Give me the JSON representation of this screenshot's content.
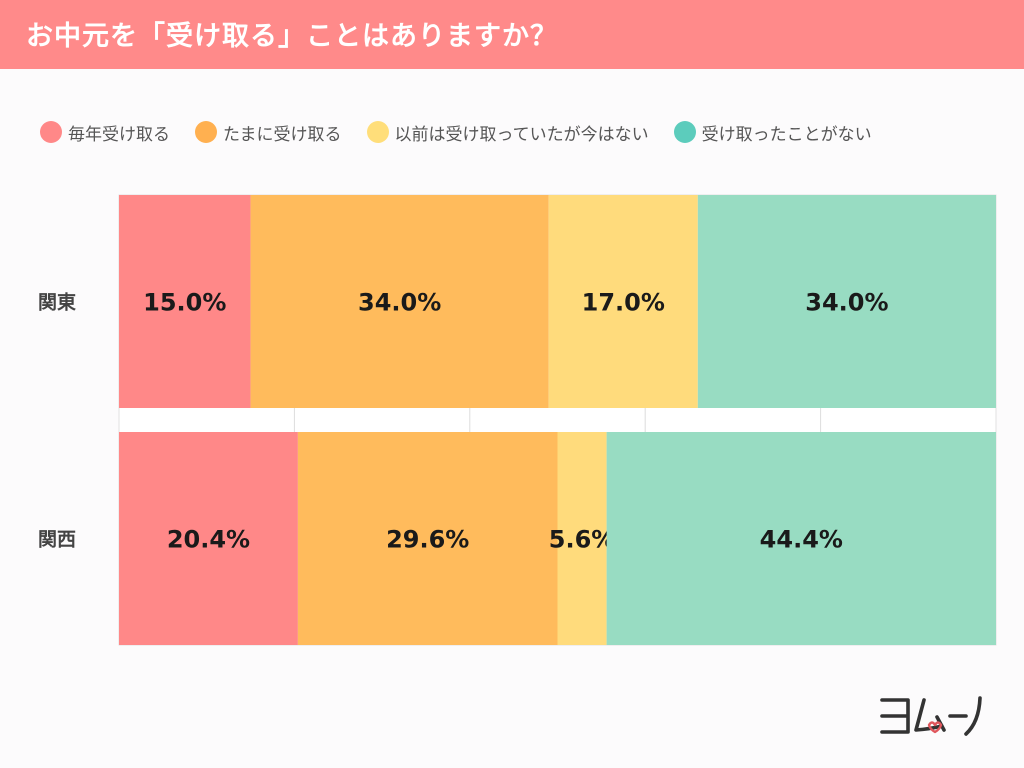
{
  "header": {
    "title": "お中元を「受け取る」ことはありますか？"
  },
  "colors": {
    "header_bg": "#ff8a8a",
    "series": [
      "#ff8888",
      "#ffbb5c",
      "#ffdb7c",
      "#98dcc2"
    ],
    "legend_dots": [
      "#ff8888",
      "#ffb050",
      "#ffde7a",
      "#5cccbc"
    ]
  },
  "logo": {
    "text": "ヨムーノ"
  },
  "chart_data": {
    "type": "bar",
    "orientation": "horizontal",
    "stacked": true,
    "title": "お中元を「受け取る」ことはありますか？",
    "categories": [
      "関東",
      "関西"
    ],
    "series": [
      {
        "name": "毎年受け取る",
        "values": [
          15.0,
          20.4
        ],
        "labels": [
          "15.0%",
          "20.4%"
        ]
      },
      {
        "name": "たまに受け取る",
        "values": [
          34.0,
          29.6
        ],
        "labels": [
          "34.0%",
          "29.6%"
        ]
      },
      {
        "name": "以前は受け取っていたが今はない",
        "values": [
          17.0,
          5.6
        ],
        "labels": [
          "17.0%",
          "5.6%"
        ]
      },
      {
        "name": "受け取ったことがない",
        "values": [
          34.0,
          44.4
        ],
        "labels": [
          "34.0%",
          "44.4%"
        ]
      }
    ],
    "xlim": [
      0,
      100
    ],
    "unit": "%",
    "legend": "top",
    "grid": true
  }
}
